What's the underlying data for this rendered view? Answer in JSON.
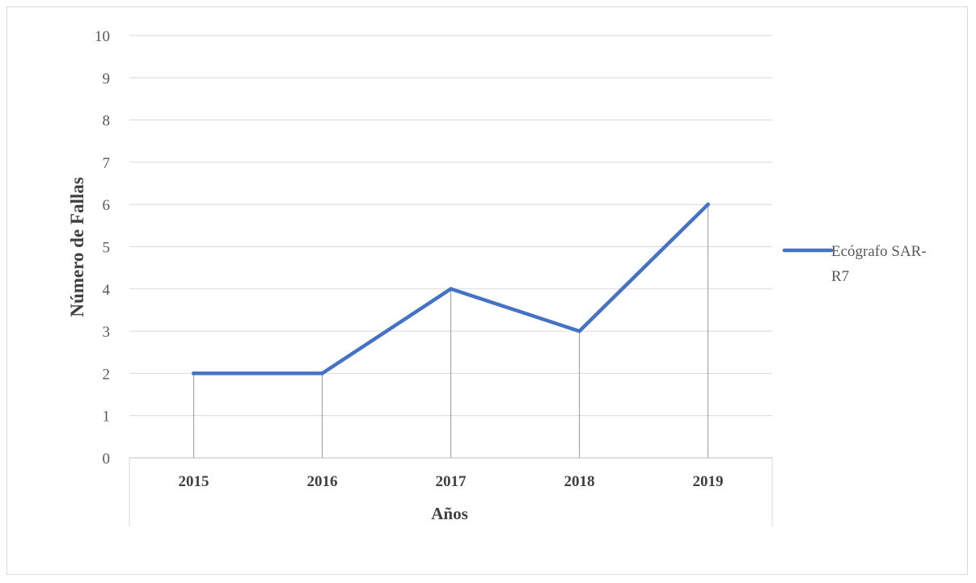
{
  "chart_data": {
    "type": "line",
    "categories": [
      "2015",
      "2016",
      "2017",
      "2018",
      "2019"
    ],
    "series": [
      {
        "name": "Ecógrafo SAR-R7",
        "values": [
          2,
          2,
          4,
          3,
          6
        ],
        "color": "#4472c4"
      }
    ],
    "xlabel": "Años",
    "ylabel": "Número de Fallas",
    "ylim": [
      0,
      10
    ],
    "yticks": [
      0,
      1,
      2,
      3,
      4,
      5,
      6,
      7,
      8,
      9,
      10
    ],
    "grid": true,
    "drop_lines": true,
    "legend_position": "right",
    "legend_lines": [
      "Ecógrafo SAR-",
      "R7"
    ]
  }
}
